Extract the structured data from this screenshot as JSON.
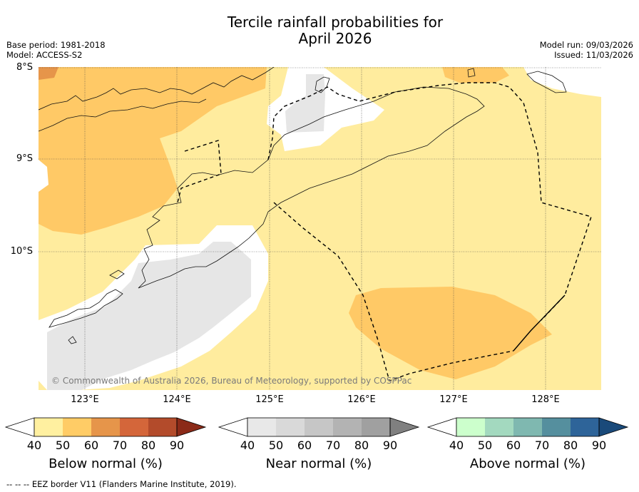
{
  "title_line1": "Tercile rainfall probabilities for",
  "title_line2": "April 2026",
  "base_period": "Base period: 1981-2018",
  "model": "Model: ACCESS-S2",
  "model_run": "Model run: 09/03/2026",
  "issued": "Issued: 11/03/2026",
  "lat_labels": [
    "8°S",
    "9°S",
    "10°S"
  ],
  "lon_labels": [
    "123°E",
    "124°E",
    "125°E",
    "126°E",
    "127°E",
    "128°E"
  ],
  "copyright": "© Commonwealth of Australia 2026, Bureau of Meteorology, supported by COSPPac",
  "colorbars": {
    "below": {
      "title": "Below normal (%)",
      "colors": [
        "#fff0a0",
        "#ffcc66",
        "#e6954a",
        "#d4663a",
        "#b34b2b",
        "#8b2a18"
      ]
    },
    "near": {
      "title": "Near normal (%)",
      "colors": [
        "#e8e8e8",
        "#d9d9d9",
        "#c6c6c6",
        "#b3b3b3",
        "#a0a0a0",
        "#808080"
      ]
    },
    "above": {
      "title": "Above normal (%)",
      "colors": [
        "#ccffcc",
        "#a3d9bf",
        "#7fb8b0",
        "#558f9e",
        "#2e6499",
        "#1a4a7a"
      ]
    }
  },
  "colorbar_ticks": [
    "40",
    "50",
    "60",
    "70",
    "80",
    "90"
  ],
  "legend_footer": "--  --  -- EEZ border V11 (Flanders Marine Institute, 2019).",
  "map_colors": {
    "land_yellow": "#ffec9e",
    "orange": "#ffc966",
    "dark_orange": "#e6954a",
    "grey": "#e6e6e6",
    "white": "#ffffff"
  }
}
